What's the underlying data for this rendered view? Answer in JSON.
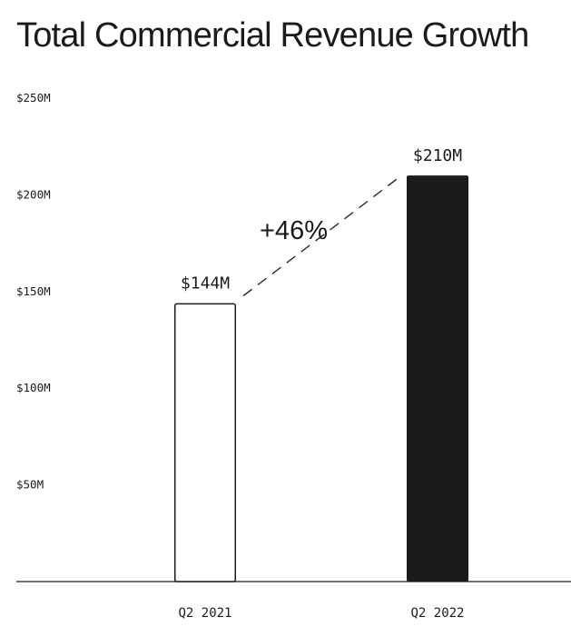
{
  "chart_data": {
    "type": "bar",
    "title": "Total Commercial Revenue Growth",
    "categories": [
      "Q2 2021",
      "Q2 2022"
    ],
    "values": [
      144,
      210
    ],
    "value_labels": [
      "$144M",
      "$210M"
    ],
    "unit": "$M",
    "ylim": [
      0,
      250
    ],
    "yticks": [
      50,
      100,
      150,
      200,
      250
    ],
    "ytick_labels": [
      "$50M",
      "$100M",
      "$150M",
      "$200M",
      "$250M"
    ],
    "xlabel": "",
    "ylabel": "",
    "grid": false,
    "bar_styles": [
      "outline",
      "filled"
    ],
    "colors": {
      "filled": "#1b1b1d",
      "outline": "#1b1b1d",
      "outline_fill": "#ffffff",
      "text": "#1b1b1d",
      "axis": "#1b1b1d"
    },
    "annotation": {
      "text": "+46%",
      "style": "dashed-connector",
      "from_category": "Q2 2021",
      "to_category": "Q2 2022"
    }
  }
}
